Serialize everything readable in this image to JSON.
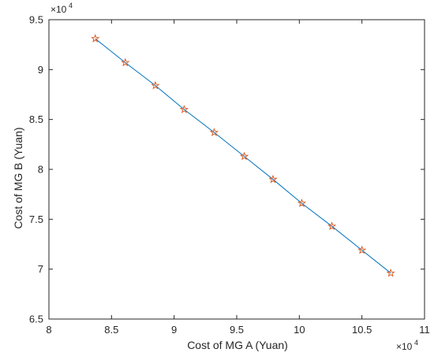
{
  "chart_data": {
    "type": "line",
    "title": "",
    "xlabel": "Cost of MG A (Yuan)",
    "ylabel": "Cost of MG B (Yuan)",
    "x_exponent": {
      "base": "×10",
      "power": "4"
    },
    "y_exponent": {
      "base": "×10",
      "power": "4"
    },
    "xlim": [
      8,
      11
    ],
    "ylim": [
      6.5,
      9.5
    ],
    "xticks": [
      "8",
      "8.5",
      "9",
      "9.5",
      "10",
      "10.5",
      "11"
    ],
    "yticks": [
      "6.5",
      "7",
      "7.5",
      "8",
      "8.5",
      "9",
      "9.5"
    ],
    "grid": false,
    "series": [
      {
        "line_color": "#0072bd",
        "marker": "pentagram",
        "marker_color": "#d95319",
        "x": [
          8.37,
          8.61,
          8.85,
          9.08,
          9.32,
          9.56,
          9.79,
          10.02,
          10.26,
          10.5,
          10.73
        ],
        "y": [
          9.31,
          9.07,
          8.84,
          8.6,
          8.37,
          8.13,
          7.9,
          7.66,
          7.43,
          7.19,
          6.96
        ]
      }
    ]
  }
}
